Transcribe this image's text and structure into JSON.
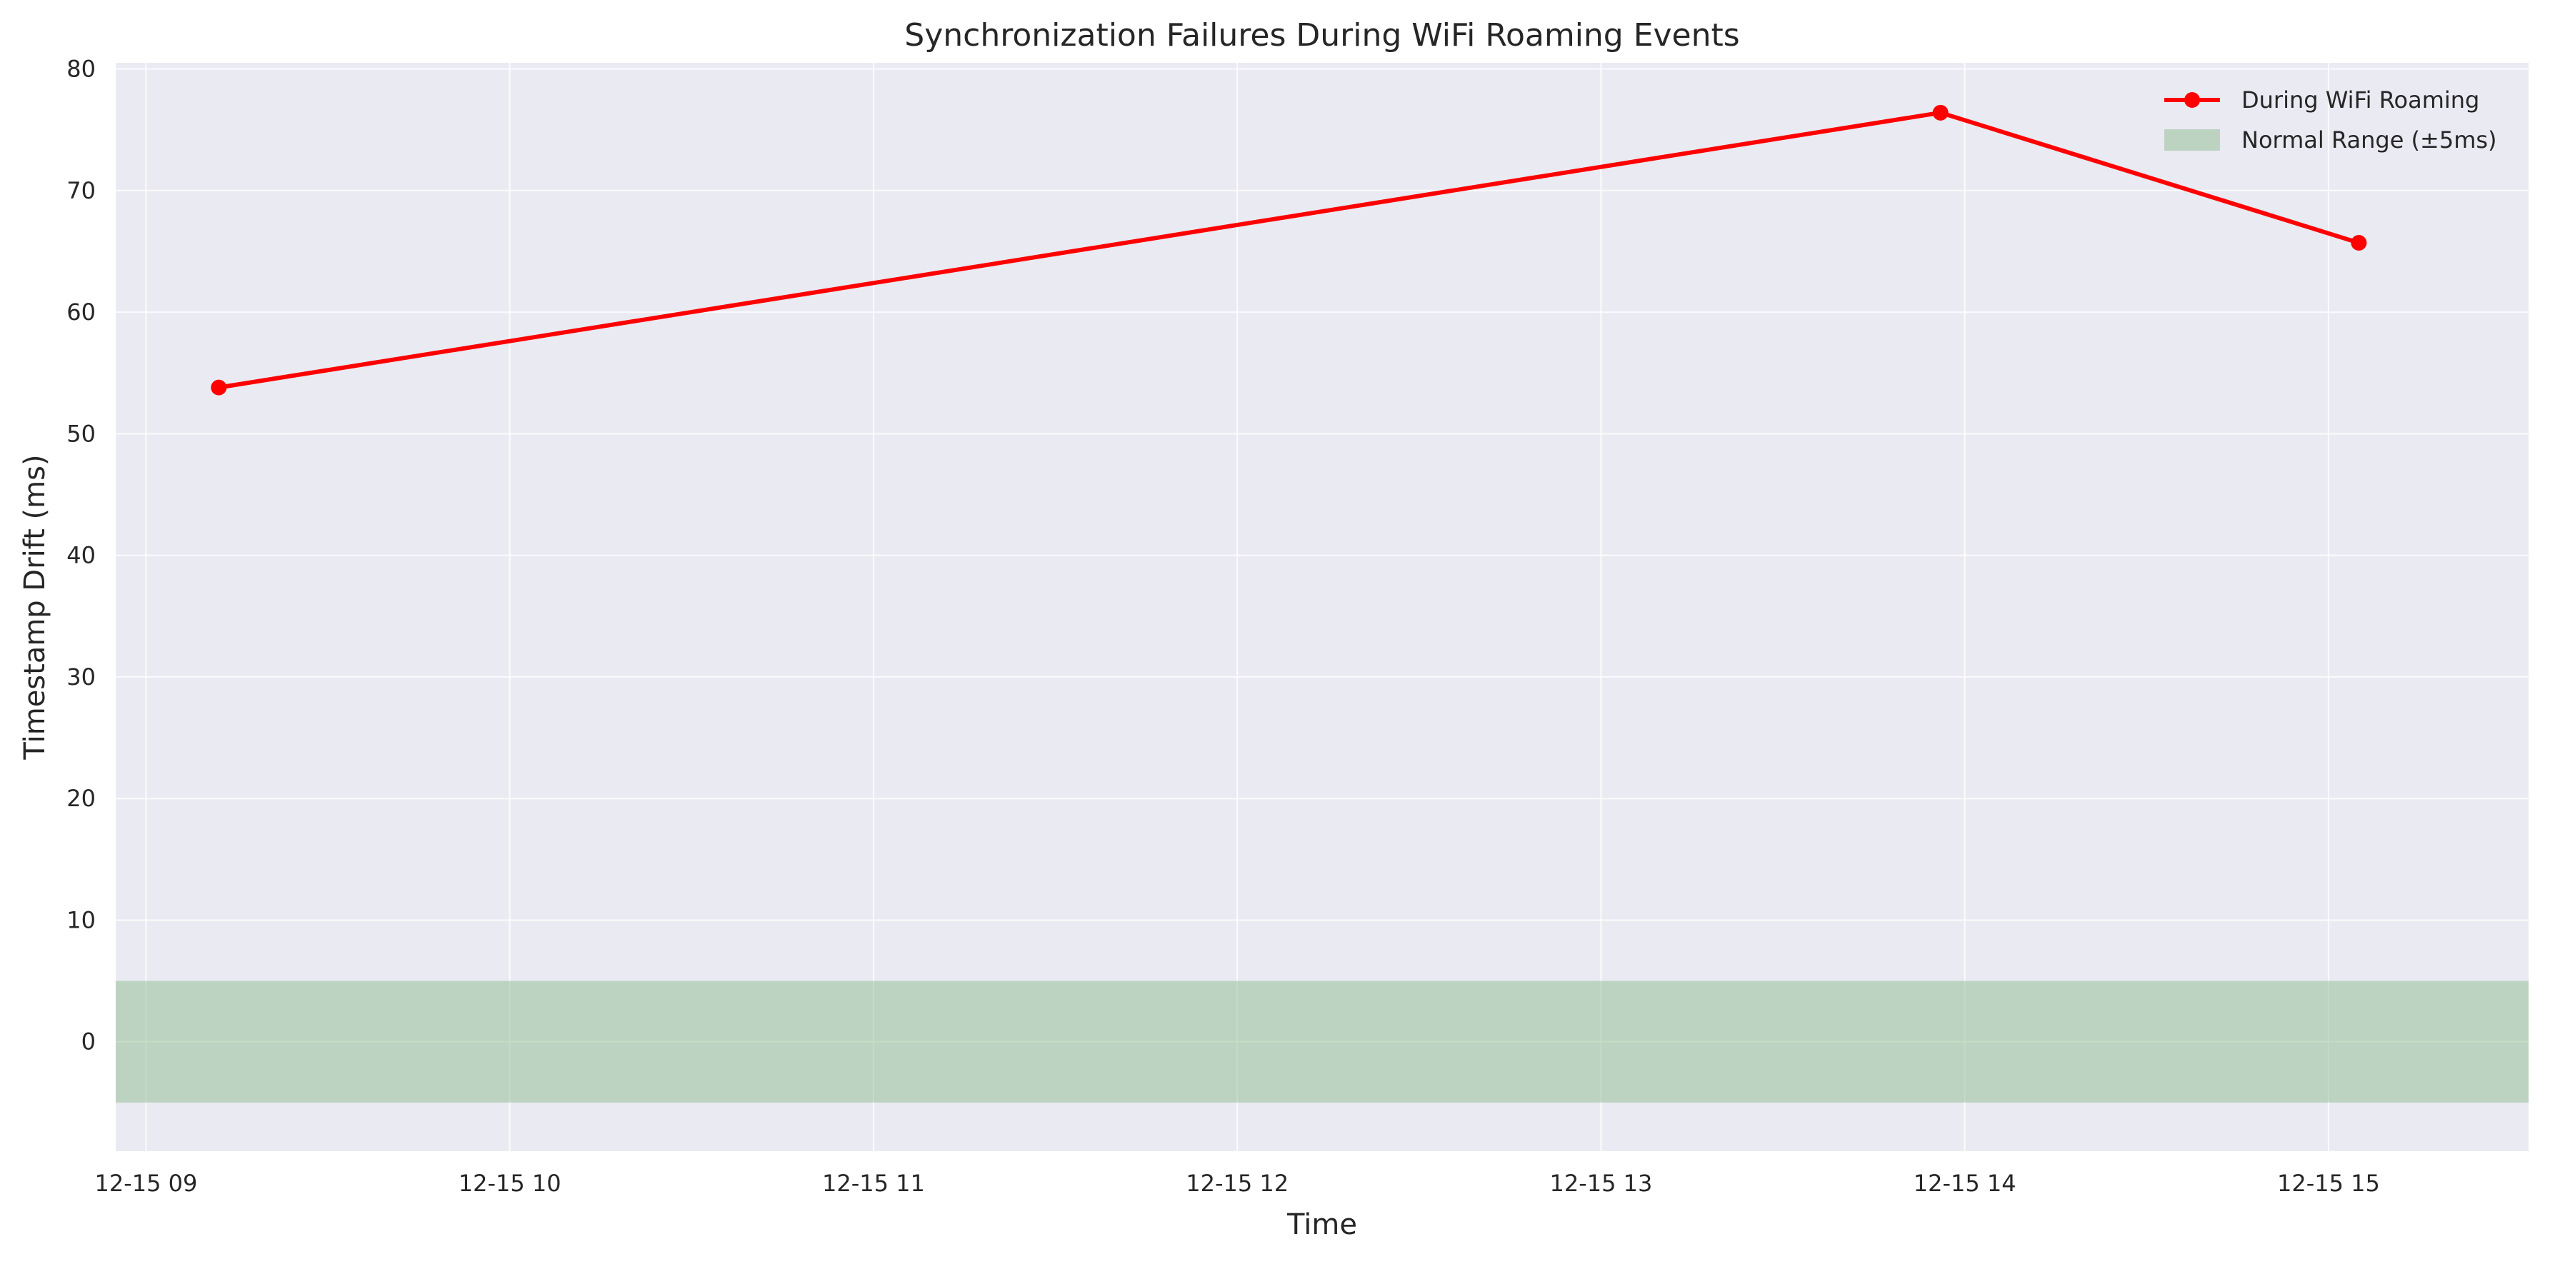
{
  "chart_data": {
    "type": "line",
    "title": "Synchronization Failures During WiFi Roaming Events",
    "xlabel": "Time",
    "ylabel": "Timestamp Drift (ms)",
    "x_axis_type": "datetime",
    "xlim": [
      "2023-12-15 08:55",
      "2023-12-15 15:33"
    ],
    "ylim": [
      -9,
      80.5
    ],
    "x_ticks": [
      {
        "value": "2023-12-15 09:00",
        "label": "12-15 09"
      },
      {
        "value": "2023-12-15 10:00",
        "label": "12-15 10"
      },
      {
        "value": "2023-12-15 11:00",
        "label": "12-15 11"
      },
      {
        "value": "2023-12-15 12:00",
        "label": "12-15 12"
      },
      {
        "value": "2023-12-15 13:00",
        "label": "12-15 13"
      },
      {
        "value": "2023-12-15 14:00",
        "label": "12-15 14"
      },
      {
        "value": "2023-12-15 15:00",
        "label": "12-15 15"
      }
    ],
    "y_ticks": [
      0,
      10,
      20,
      30,
      40,
      50,
      60,
      70,
      80
    ],
    "grid": true,
    "legend_position": "top-right",
    "series": [
      {
        "name": "During WiFi Roaming",
        "color": "#ff0000",
        "marker": "circle",
        "points": [
          {
            "x": "2023-12-15 09:12",
            "y": 53.8
          },
          {
            "x": "2023-12-15 13:56",
            "y": 76.4
          },
          {
            "x": "2023-12-15 15:05",
            "y": 65.7
          }
        ]
      }
    ],
    "bands": [
      {
        "name": "Normal Range (±5ms)",
        "y_from": -5,
        "y_to": 5,
        "color": "#8fbc8f"
      }
    ],
    "colors": {
      "plot_background": "#eaeaf2",
      "grid": "#ffffff",
      "text": "#262626"
    }
  }
}
